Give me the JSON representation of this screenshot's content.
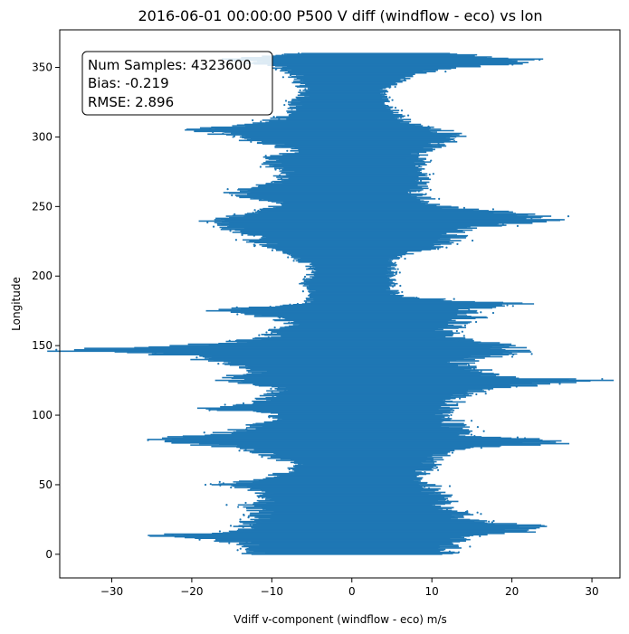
{
  "chart_data": {
    "type": "scatter",
    "title": "2016-06-01 00:00:00 P500 V diff (windflow - eco) vs lon",
    "xlabel": "Vdiff v-component (windflow - eco) m/s",
    "ylabel": "Longitude",
    "xlim": [
      -36.5,
      33.5
    ],
    "ylim": [
      -17,
      377
    ],
    "x_ticks": [
      -30,
      -20,
      -10,
      0,
      10,
      20,
      30
    ],
    "y_ticks": [
      0,
      50,
      100,
      150,
      200,
      250,
      300,
      350
    ],
    "point_color": "#1f77b4",
    "grid": false,
    "stats": {
      "num_samples_label": "Num Samples: 4323600",
      "bias_label": "Bias: -0.219",
      "rmse_label": "RMSE: 2.896"
    },
    "envelope": {
      "lon": [
        0,
        5,
        10,
        14,
        16,
        20,
        25,
        30,
        35,
        40,
        45,
        50,
        55,
        60,
        65,
        70,
        75,
        80,
        83,
        86,
        90,
        95,
        100,
        105,
        110,
        115,
        120,
        125,
        128,
        132,
        136,
        140,
        143,
        146,
        148,
        150,
        153,
        156,
        160,
        165,
        170,
        175,
        180,
        185,
        190,
        195,
        200,
        205,
        210,
        215,
        220,
        225,
        230,
        235,
        238,
        242,
        246,
        249,
        252,
        256,
        260,
        265,
        270,
        275,
        280,
        285,
        290,
        295,
        300,
        305,
        310,
        315,
        320,
        325,
        330,
        335,
        340,
        345,
        350,
        353,
        356,
        360
      ],
      "min": [
        -12,
        -12,
        -16,
        -24,
        -14,
        -13,
        -12,
        -11,
        -13,
        -10,
        -11,
        -16,
        -10,
        -8,
        -7,
        -10,
        -12,
        -20,
        -23,
        -18,
        -13,
        -11,
        -9,
        -18,
        -11,
        -10,
        -9,
        -15,
        -14,
        -12,
        -15,
        -18,
        -20,
        -34,
        -30,
        -20,
        -14,
        -10,
        -10,
        -7,
        -10,
        -18,
        -6,
        -5,
        -5,
        -6,
        -5,
        -5,
        -6,
        -7,
        -9,
        -12,
        -12,
        -16,
        -18,
        -15,
        -11,
        -10,
        -9,
        -12,
        -14,
        -11,
        -9,
        -8,
        -10,
        -10,
        -7,
        -10,
        -15,
        -19,
        -11,
        -8,
        -7,
        -7,
        -6,
        -6,
        -7,
        -7,
        -9,
        -12,
        -15,
        -7
      ],
      "max": [
        12,
        12,
        14,
        15,
        20,
        23,
        14,
        13,
        11,
        12,
        10,
        10,
        8,
        9,
        10,
        11,
        12,
        25,
        21,
        14,
        13,
        13,
        12,
        12,
        13,
        14,
        18,
        30,
        18,
        16,
        13,
        15,
        18,
        20,
        20,
        20,
        15,
        12,
        12,
        13,
        15,
        14,
        20,
        6,
        5,
        5,
        5,
        5,
        5,
        6,
        10,
        12,
        13,
        16,
        22,
        24,
        19,
        12,
        10,
        9,
        8,
        9,
        9,
        8,
        9,
        8,
        9,
        11,
        13,
        11,
        7,
        6,
        5,
        4,
        4,
        4,
        6,
        7,
        13,
        20,
        22,
        12
      ]
    }
  }
}
